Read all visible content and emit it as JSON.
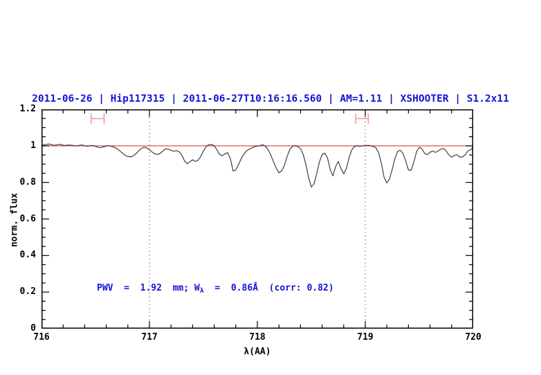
{
  "figure": {
    "title": "2011-06-26 | Hip117315 | 2011-06-27T10:16:16.560 | AM=1.11 | XSHOOTER | S1.2x11",
    "annotation": {
      "part1": "PWV  =  1.92  mm; W",
      "sub": "λ",
      "part2": "  =  0.86Å  (corr: 0.82)"
    }
  },
  "colors": {
    "title_text": "#1313d6",
    "annotation_text": "#1313d6",
    "continuum": "#e06060",
    "marker": "#f09a9a",
    "spectrum": "#2e2e2e",
    "gridline": "#666666",
    "frame": "#000000",
    "background": "#ffffff"
  },
  "chart_data": {
    "type": "line",
    "title": "2011-06-26 | Hip117315 | 2011-06-27T10:16:16.560 | AM=1.11 | XSHOOTER | S1.2x11",
    "annotation": "PWV = 1.92 mm; W_λ = 0.86Å (corr: 0.82)",
    "xlabel": "λ(AA)",
    "ylabel": "norm. flux",
    "xlim": [
      716,
      720
    ],
    "ylim": [
      0,
      1.2
    ],
    "x_major_ticks": [
      716,
      717,
      718,
      719,
      720
    ],
    "x_tick_labels": [
      "716",
      "717",
      "718",
      "719",
      "720"
    ],
    "x_minor_step": 0.2,
    "y_major_ticks": [
      0,
      0.2,
      0.4,
      0.6,
      0.8,
      1,
      1.2
    ],
    "y_tick_labels": [
      "0",
      "0.2",
      "0.4",
      "0.6",
      "0.8",
      "1",
      "1.2"
    ],
    "y_minor_step": 0.05,
    "grid": "off",
    "legend": "none",
    "dotted_vlines": [
      717,
      719
    ],
    "continuum_y": 1.0,
    "markers": [
      {
        "type": "errorbar-h",
        "x_center": 716.52,
        "x_half_width": 0.06,
        "y": 1.149,
        "cap_half_height": 0.028
      },
      {
        "type": "errorbar-h",
        "x_center": 718.97,
        "x_half_width": 0.058,
        "y": 1.149,
        "cap_half_height": 0.028
      }
    ],
    "series": [
      {
        "name": "telluric-spectrum",
        "x_start": 716.0,
        "x_step": 0.025,
        "flux": [
          1.002,
          1.006,
          1.009,
          1.01,
          1.005,
          1.003,
          1.007,
          1.008,
          1.004,
          1.002,
          1.005,
          1.004,
          1.001,
          0.999,
          1.003,
          1.005,
          1.001,
          0.998,
          1.001,
          1.002,
          0.997,
          0.992,
          0.99,
          0.995,
          0.999,
          1.001,
          0.997,
          0.992,
          0.985,
          0.973,
          0.96,
          0.949,
          0.942,
          0.94,
          0.945,
          0.957,
          0.973,
          0.986,
          0.992,
          0.989,
          0.979,
          0.966,
          0.956,
          0.953,
          0.959,
          0.973,
          0.984,
          0.982,
          0.975,
          0.971,
          0.974,
          0.968,
          0.95,
          0.918,
          0.902,
          0.913,
          0.924,
          0.915,
          0.921,
          0.942,
          0.972,
          0.996,
          1.006,
          1.008,
          1.001,
          0.978,
          0.953,
          0.946,
          0.956,
          0.963,
          0.93,
          0.862,
          0.868,
          0.896,
          0.93,
          0.956,
          0.972,
          0.982,
          0.989,
          0.996,
          0.999,
          1.001,
          1.006,
          0.998,
          0.979,
          0.949,
          0.913,
          0.878,
          0.853,
          0.863,
          0.892,
          0.941,
          0.98,
          0.998,
          1.001,
          0.996,
          0.985,
          0.953,
          0.898,
          0.826,
          0.775,
          0.792,
          0.848,
          0.912,
          0.952,
          0.96,
          0.935,
          0.87,
          0.836,
          0.886,
          0.915,
          0.876,
          0.847,
          0.876,
          0.936,
          0.978,
          0.996,
          1.001,
          0.998,
          1.0,
          1.001,
          1.003,
          1.0,
          0.997,
          0.989,
          0.96,
          0.902,
          0.826,
          0.797,
          0.82,
          0.872,
          0.932,
          0.97,
          0.976,
          0.958,
          0.917,
          0.868,
          0.866,
          0.912,
          0.968,
          0.992,
          0.984,
          0.958,
          0.952,
          0.965,
          0.972,
          0.964,
          0.972,
          0.982,
          0.986,
          0.972,
          0.95,
          0.938,
          0.948,
          0.952,
          0.938,
          0.94,
          0.95,
          0.972,
          0.978,
          0.992
        ]
      }
    ]
  }
}
